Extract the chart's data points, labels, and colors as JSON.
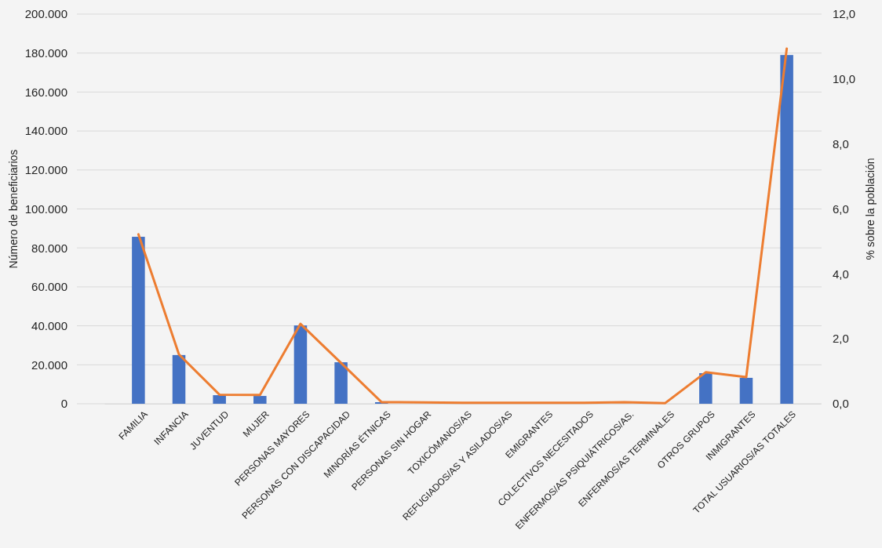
{
  "chart_data": {
    "type": "bar",
    "ylabel": "Número de beneficiarios",
    "y2label": "% sobre la población",
    "categories": [
      "FAMILIA",
      "INFANCIA",
      "JUVENTUD",
      "MUJER",
      "PERSONAS MAYORES",
      "PERSONAS CON DISCAPACIDAD",
      "MINORÍAS ÉTNICAS",
      "PERSONAS SIN HOGAR",
      "TOXICÓMANOS/AS",
      "REFUGIADOS/AS Y ASILADOS/AS",
      "EMIGRANTES",
      "COLECTIVOS NECESITADOS",
      "ENFERMOS/AS PSIQUIÁTRICOS/AS.",
      "ENFERMOS/AS TERMINALES",
      "OTROS GRUPOS",
      "INMIGRANTES",
      "TOTAL USUARIOS/AS TOTALES"
    ],
    "series": [
      {
        "color": "#4472c4",
        "values": [
          85700,
          25000,
          4400,
          4000,
          40200,
          21300,
          800,
          null,
          null,
          null,
          null,
          null,
          null,
          null,
          15700,
          13300,
          179000
        ]
      },
      {
        "type": "line",
        "axis": "y2",
        "color": "#ed7d31",
        "values": [
          5.22,
          1.52,
          0.28,
          0.27,
          2.46,
          1.26,
          0.05,
          0.04,
          0.03,
          0.03,
          0.03,
          0.03,
          0.05,
          0.02,
          0.97,
          0.82,
          10.94
        ]
      }
    ],
    "ylim": [
      0,
      200000
    ],
    "yticks": [
      {
        "value": 0,
        "label": "0"
      },
      {
        "value": 20000,
        "label": "20.000"
      },
      {
        "value": 40000,
        "label": "40.000"
      },
      {
        "value": 60000,
        "label": "60.000"
      },
      {
        "value": 80000,
        "label": "80.000"
      },
      {
        "value": 100000,
        "label": "100.000"
      },
      {
        "value": 120000,
        "label": "120.000"
      },
      {
        "value": 140000,
        "label": "140.000"
      },
      {
        "value": 160000,
        "label": "160.000"
      },
      {
        "value": 180000,
        "label": "180.000"
      },
      {
        "value": 200000,
        "label": "200.000"
      }
    ],
    "y2lim": [
      0,
      12
    ],
    "y2ticks": [
      {
        "value": 0,
        "label": "0,0"
      },
      {
        "value": 2,
        "label": "2,0"
      },
      {
        "value": 4,
        "label": "4,0"
      },
      {
        "value": 6,
        "label": "6,0"
      },
      {
        "value": 8,
        "label": "8,0"
      },
      {
        "value": 10,
        "label": "10,0"
      },
      {
        "value": 12,
        "label": "12,0"
      }
    ],
    "grid": "y",
    "line_style": "solid",
    "marker": "none"
  }
}
